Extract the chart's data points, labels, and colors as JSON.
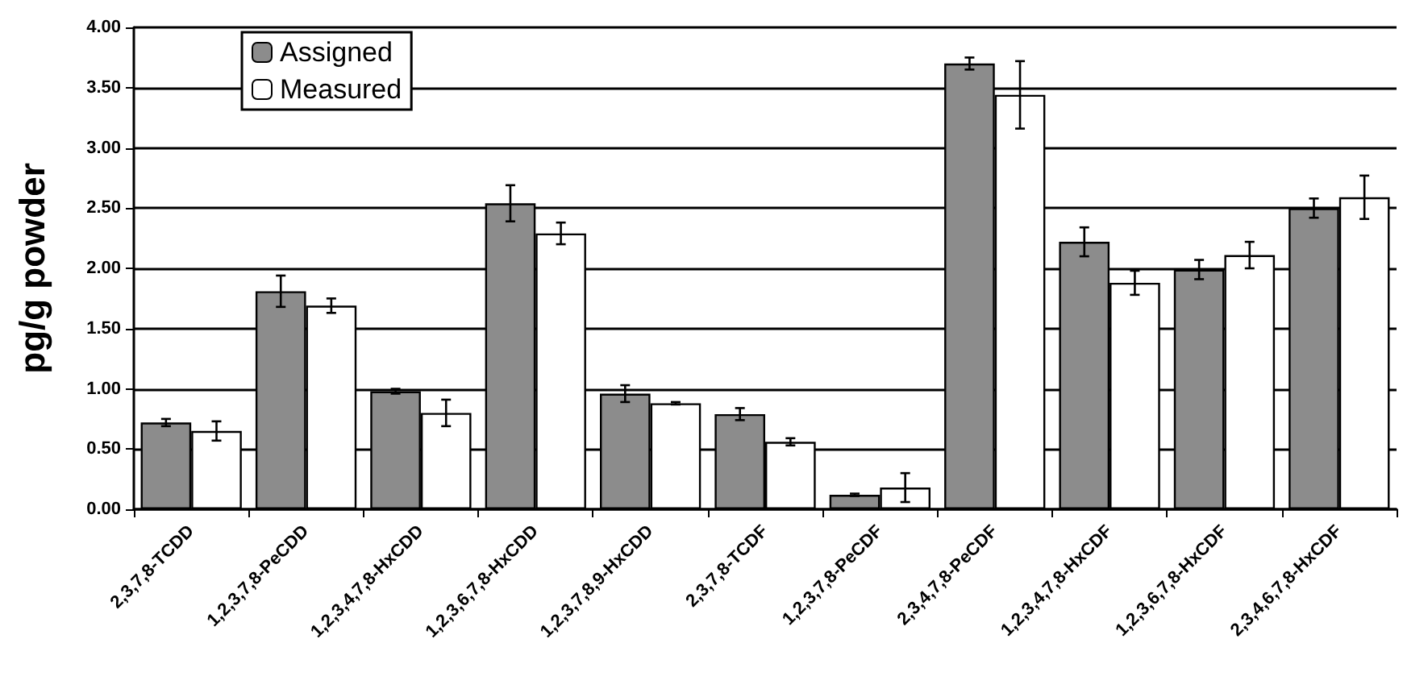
{
  "chart_data": {
    "type": "bar",
    "ylabel": "pg/g powder",
    "categories": [
      "2,3,7,8-TCDD",
      "1,2,3,7,8-PeCDD",
      "1,2,3,4,7,8-HxCDD",
      "1,2,3,6,7,8-HxCDD",
      "1,2,3,7,8,9-HxCDD",
      "2,3,7,8-TCDF",
      "1,2,3,7,8-PeCDF",
      "2,3,4,7,8-PeCDF",
      "1,2,3,4,7,8-HxCDF",
      "1,2,3,6,7,8-HxCDF",
      "2,3,4,6,7,8-HxCDF"
    ],
    "series": [
      {
        "name": "Assigned",
        "color": "#8c8c8c",
        "values": [
          0.72,
          1.81,
          0.98,
          2.54,
          0.96,
          0.79,
          0.12,
          3.7,
          2.22,
          1.99,
          2.5
        ],
        "errors": [
          0.03,
          0.13,
          0.02,
          0.15,
          0.07,
          0.05,
          0.01,
          0.05,
          0.12,
          0.08,
          0.08
        ]
      },
      {
        "name": "Measured",
        "color": "#ffffff",
        "values": [
          0.65,
          1.69,
          0.8,
          2.29,
          0.88,
          0.56,
          0.18,
          3.44,
          1.88,
          2.11,
          2.59
        ],
        "errors": [
          0.08,
          0.06,
          0.11,
          0.09,
          0.01,
          0.03,
          0.12,
          0.28,
          0.1,
          0.11,
          0.18
        ]
      }
    ],
    "ylim": [
      0,
      4
    ],
    "yticks": [
      {
        "value": 0,
        "label": "0.00"
      },
      {
        "value": 0.5,
        "label": "0.50"
      },
      {
        "value": 1,
        "label": "1.00"
      },
      {
        "value": 1.5,
        "label": "1.50"
      },
      {
        "value": 2,
        "label": "2.00"
      },
      {
        "value": 2.5,
        "label": "2.50"
      },
      {
        "value": 3,
        "label": "3.00"
      },
      {
        "value": 3.5,
        "label": "3.50"
      },
      {
        "value": 4,
        "label": "4.00"
      }
    ],
    "grid": "y",
    "legend": "top left"
  }
}
